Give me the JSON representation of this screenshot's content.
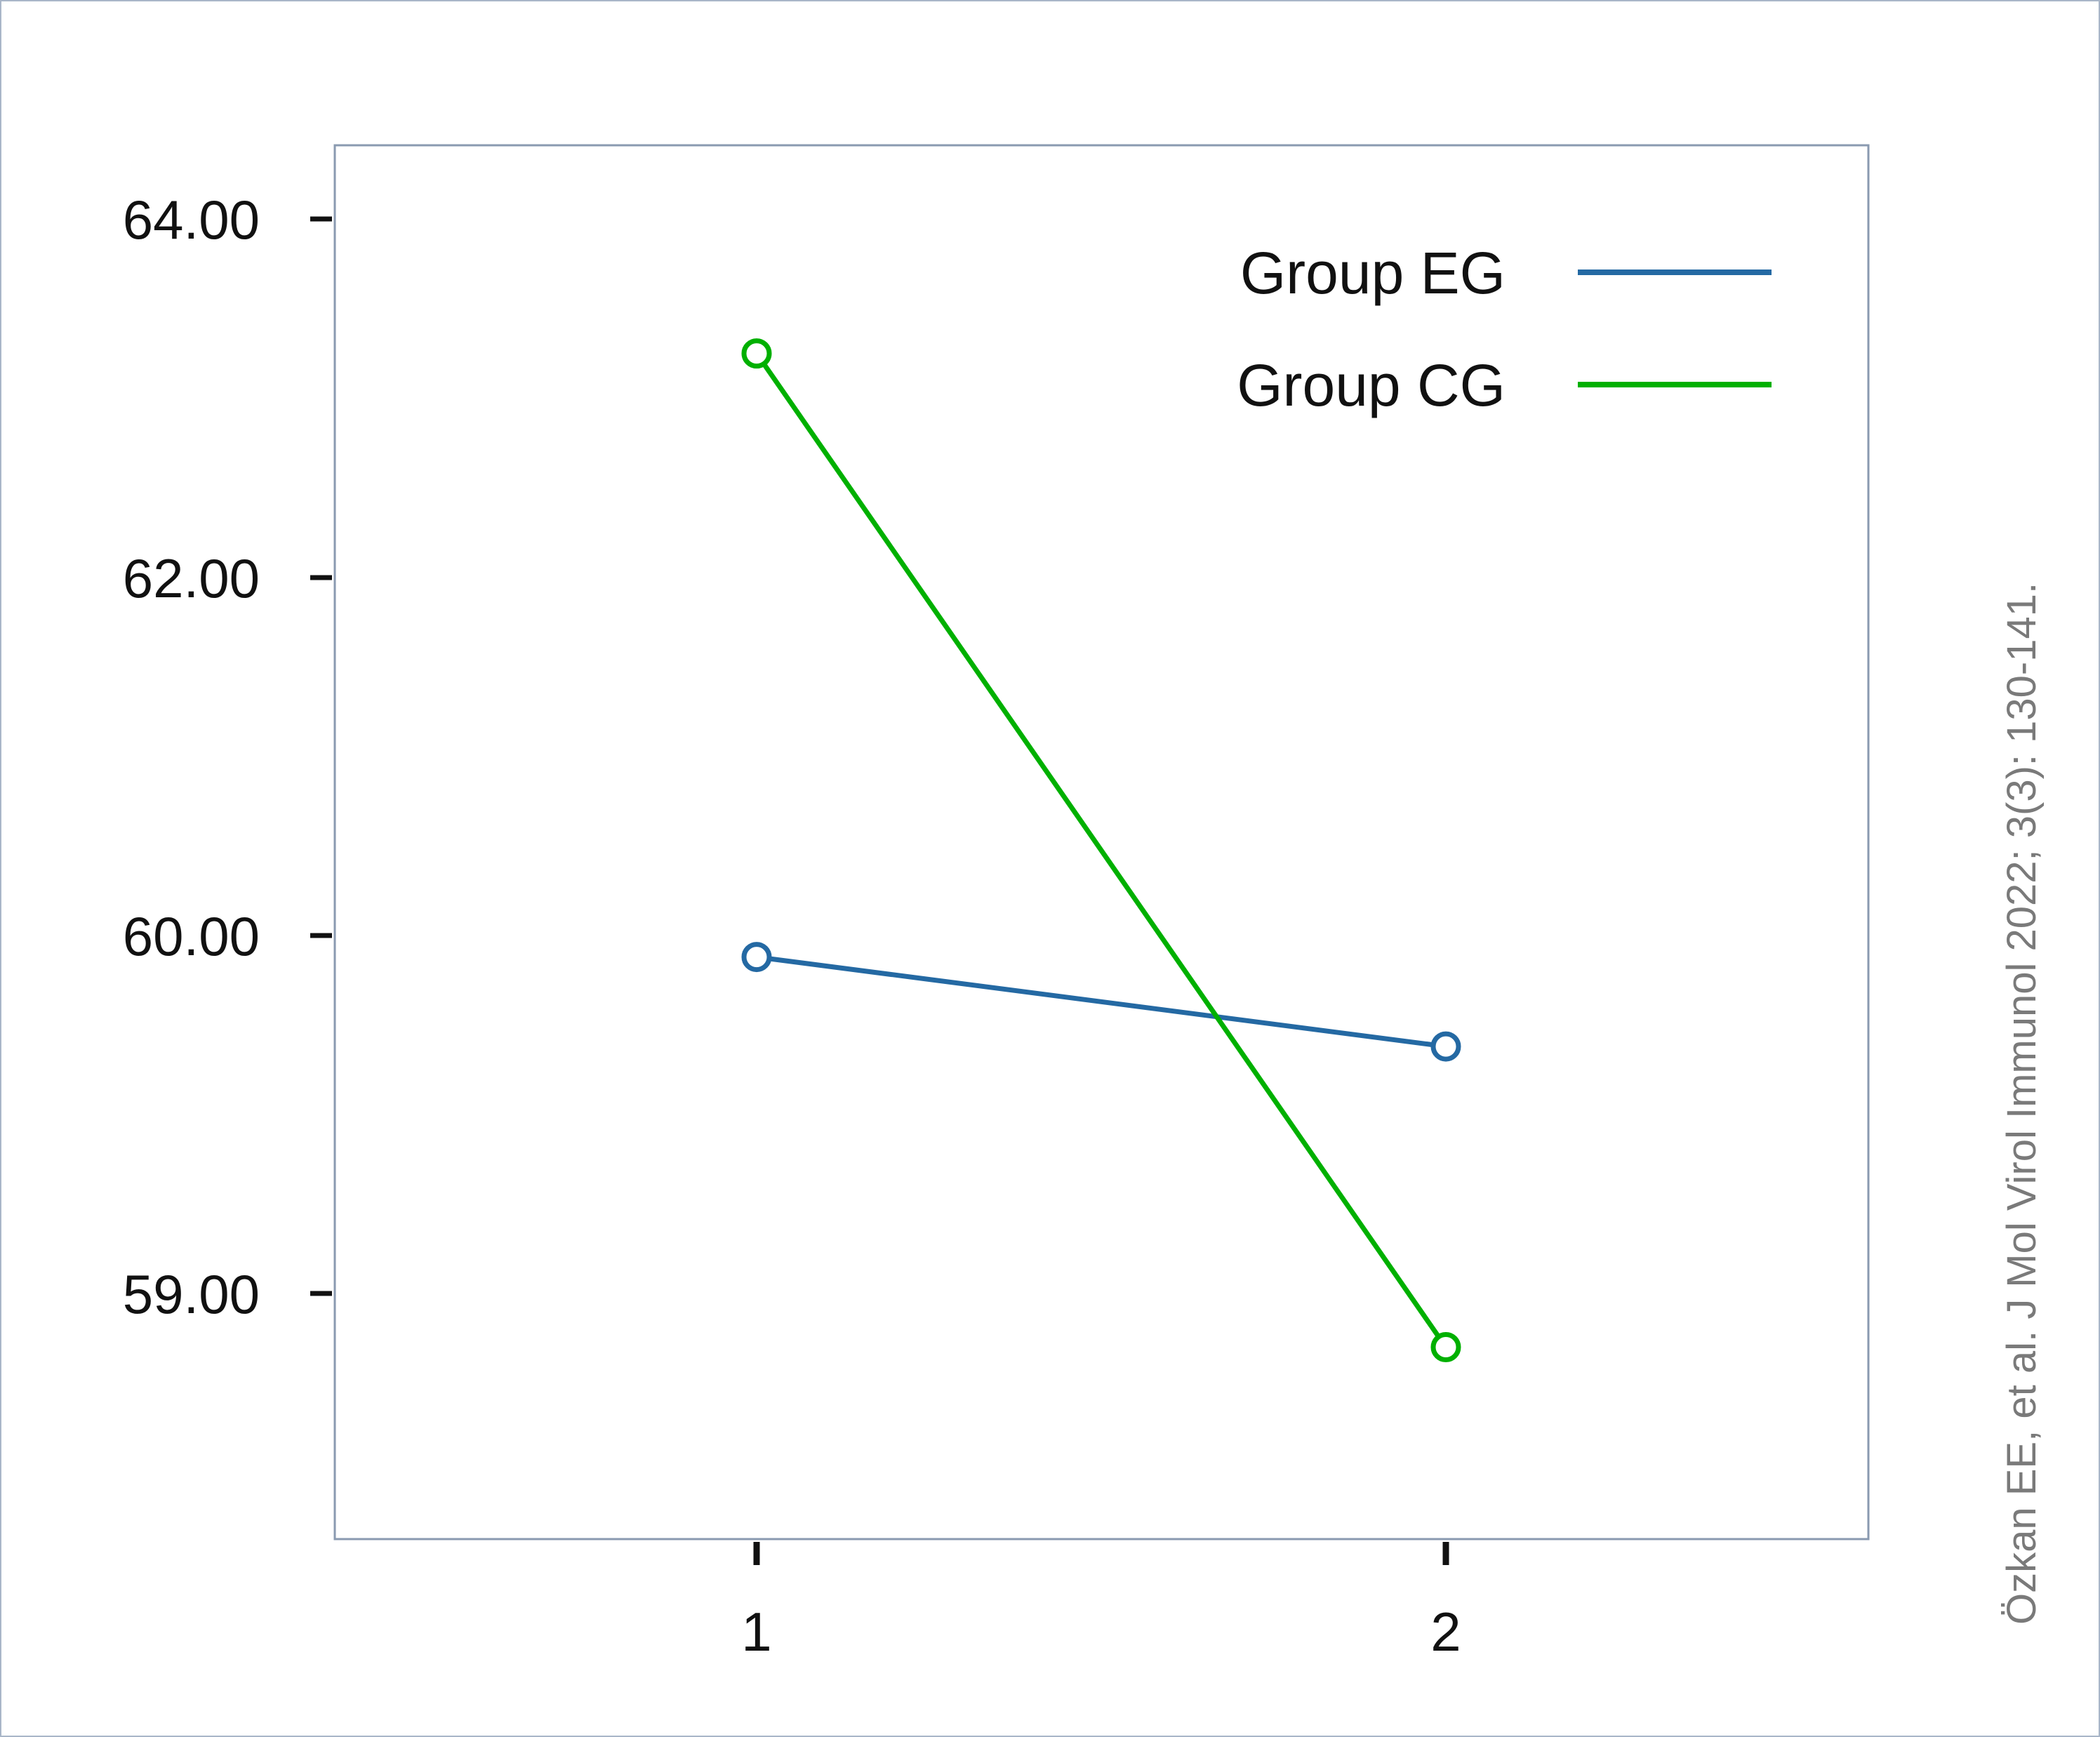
{
  "chart_data": {
    "type": "line",
    "categories": [
      "1",
      "2"
    ],
    "series": [
      {
        "name": "Group EG",
        "color": "#2469a3",
        "values": [
          59.94,
          59.69
        ]
      },
      {
        "name": "Group CG",
        "color": "#00b000",
        "values": [
          63.25,
          58.85
        ]
      }
    ],
    "yticks": [
      "59.00",
      "60.00",
      "62.00",
      "64.00"
    ],
    "title": "",
    "xlabel": "",
    "ylabel": "",
    "legend_position": "top-right",
    "grid": false,
    "marker": "open-circle"
  },
  "citation": "Özkan EE, et al. J Mol Virol Immunol 2022; 3(3): 130-141."
}
